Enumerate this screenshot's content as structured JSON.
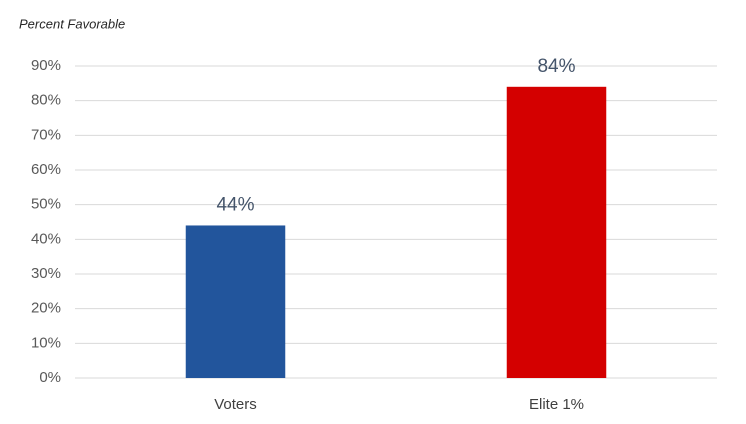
{
  "chart_data": {
    "type": "bar",
    "y_axis_label": "Percent Favorable",
    "categories": [
      "Voters",
      "Elite 1%"
    ],
    "values": [
      44,
      84
    ],
    "value_labels": [
      "44%",
      "84%"
    ],
    "colors": [
      "#22559c",
      "#d40000"
    ],
    "ylim": [
      0,
      90
    ],
    "yticks": [
      {
        "value": 0,
        "label": "0%"
      },
      {
        "value": 10,
        "label": "10%"
      },
      {
        "value": 20,
        "label": "20%"
      },
      {
        "value": 30,
        "label": "30%"
      },
      {
        "value": 40,
        "label": "40%"
      },
      {
        "value": 50,
        "label": "50%"
      },
      {
        "value": 60,
        "label": "60%"
      },
      {
        "value": 70,
        "label": "70%"
      },
      {
        "value": 80,
        "label": "80%"
      },
      {
        "value": 90,
        "label": "90%"
      }
    ],
    "grid": true
  }
}
